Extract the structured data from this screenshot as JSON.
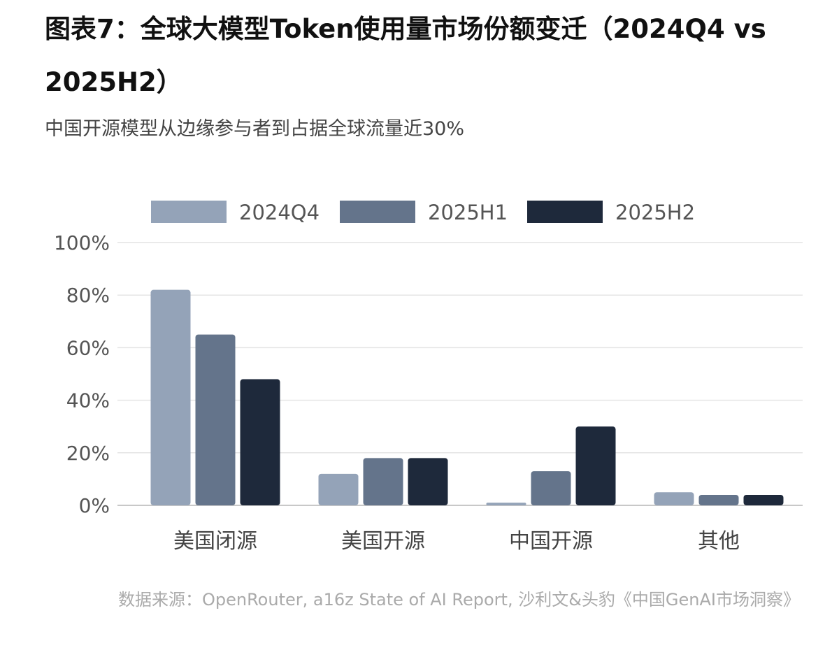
{
  "title": "图表7：全球大模型Token使用量市场份额变迁（2024Q4 vs 2025H2）",
  "subtitle": "中国开源模型从边缘参与者到占据全球流量近30%",
  "source": "数据来源：OpenRouter, a16z State of AI Report, 沙利文&头豹《中国GenAI市场洞察》",
  "chart_data": {
    "type": "bar",
    "categories": [
      "美国闭源",
      "美国开源",
      "中国开源",
      "其他"
    ],
    "series": [
      {
        "name": "2024Q4",
        "values": [
          82,
          12,
          1,
          5
        ],
        "color": "#94a3b8"
      },
      {
        "name": "2025H1",
        "values": [
          65,
          18,
          13,
          4
        ],
        "color": "#64748b"
      },
      {
        "name": "2025H2",
        "values": [
          48,
          18,
          30,
          4
        ],
        "color": "#1e293b"
      }
    ],
    "ylim": [
      0,
      100
    ],
    "yticks": [
      "0%",
      "20%",
      "40%",
      "60%",
      "80%",
      "100%"
    ],
    "grid": true,
    "legend": "top"
  }
}
